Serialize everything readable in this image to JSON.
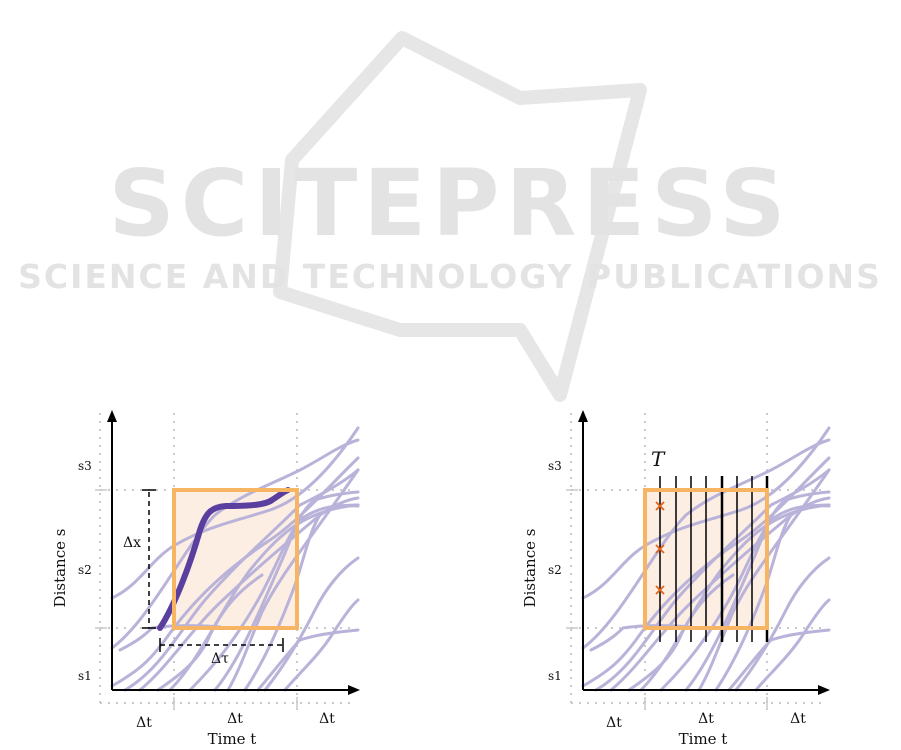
{
  "watermark": {
    "brand": "SCITEPRESS",
    "tagline": "SCIENCE AND TECHNOLOGY PUBLICATIONS",
    "color": "#e3e3e3"
  },
  "colors": {
    "trajectory": "#b9b3d9",
    "highlight": "#5b3f9f",
    "box_stroke": "#f7b462",
    "box_fill": "#fdeee3",
    "sample_mark": "#e0651a",
    "axis": "#000000",
    "guide": "#c9c9c9"
  },
  "left_panel": {
    "y_axis_label": "Distance s",
    "x_axis_label": "Time t",
    "y_ticks": [
      "s3",
      "s2",
      "s1"
    ],
    "x_tick_labels": [
      "Δt",
      "Δt",
      "Δt"
    ],
    "delta_x": "Δx",
    "delta_tau": "Δτ"
  },
  "right_panel": {
    "y_axis_label": "Distance s",
    "x_axis_label": "Time t",
    "y_ticks": [
      "s3",
      "s2",
      "s1"
    ],
    "x_tick_labels": [
      "Δt",
      "Δt",
      "Δt"
    ],
    "period_label": "T",
    "sample_marks": 3
  }
}
